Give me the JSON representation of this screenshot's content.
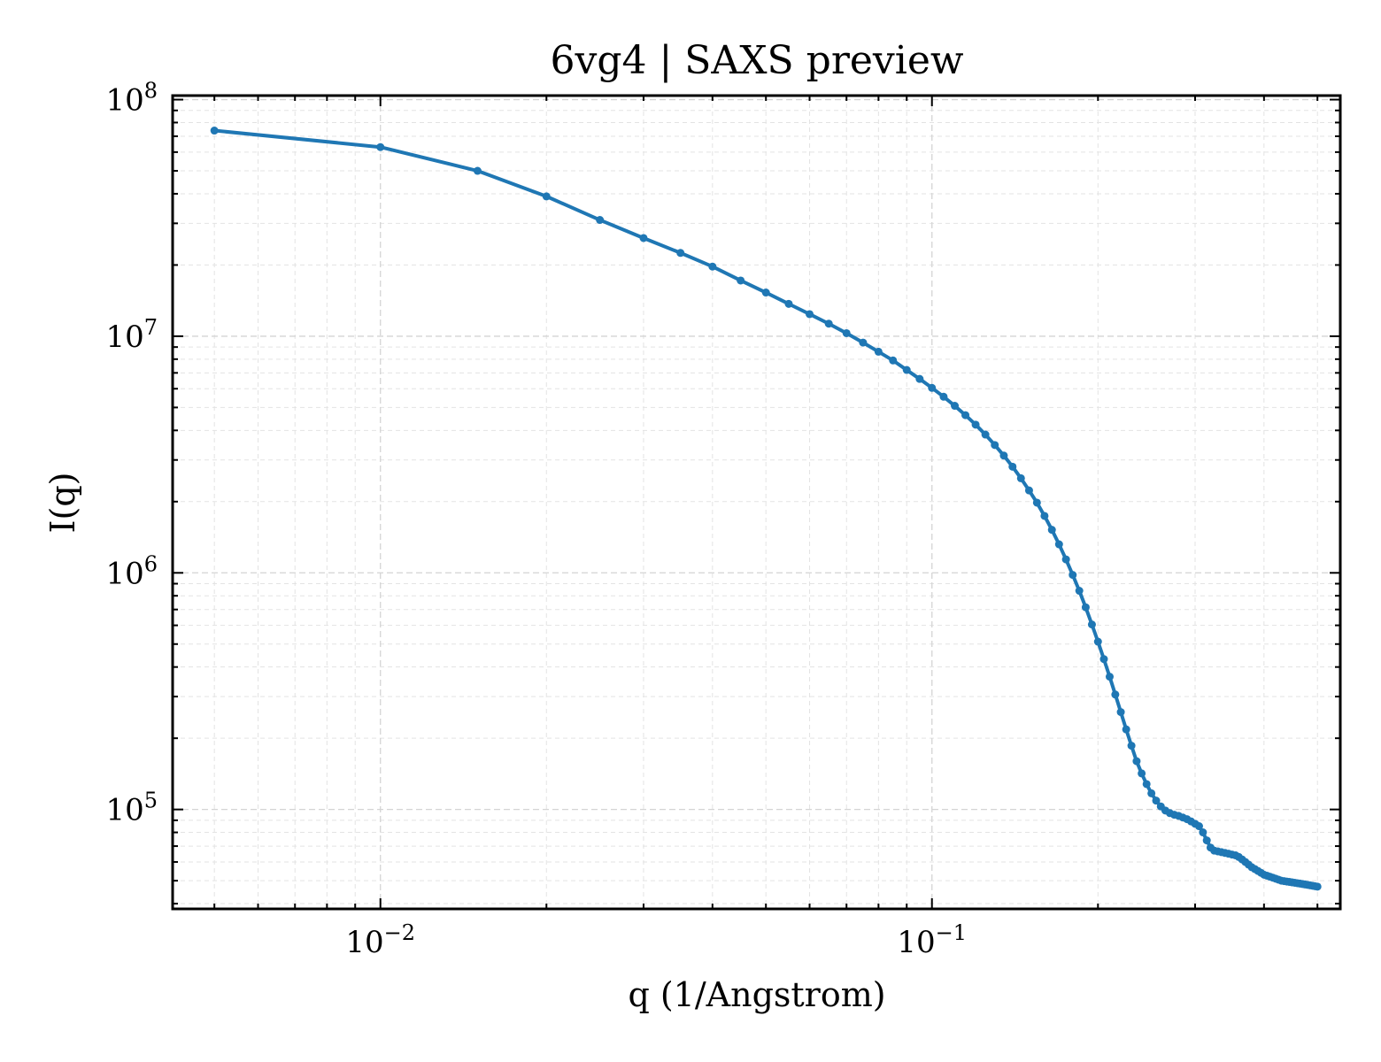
{
  "chart_data": {
    "type": "line",
    "title": "6vg4 | SAXS preview",
    "xlabel": "q (1/Angstrom)",
    "ylabel": "I(q)",
    "xscale": "log",
    "yscale": "log",
    "xlim": [
      0.0042,
      0.55
    ],
    "ylim": [
      38000,
      104000000
    ],
    "grid": "major and minor, dashed",
    "x_ticks": [
      {
        "value": 0.01,
        "base": "10",
        "exp": "−2"
      },
      {
        "value": 0.1,
        "base": "10",
        "exp": "−1"
      }
    ],
    "y_ticks": [
      {
        "value": 100000,
        "base": "10",
        "exp": "5"
      },
      {
        "value": 1000000,
        "base": "10",
        "exp": "6"
      },
      {
        "value": 10000000,
        "base": "10",
        "exp": "7"
      },
      {
        "value": 100000000,
        "base": "10",
        "exp": "8"
      }
    ],
    "series": [
      {
        "color": "#1f77b4",
        "marker": "circle",
        "x": [
          0.005,
          0.01,
          0.015,
          0.02,
          0.025,
          0.03,
          0.035,
          0.04,
          0.045,
          0.05,
          0.055,
          0.06,
          0.065,
          0.07,
          0.075,
          0.08,
          0.085,
          0.09,
          0.095,
          0.1,
          0.105,
          0.11,
          0.115,
          0.12,
          0.125,
          0.13,
          0.135,
          0.14,
          0.145,
          0.15,
          0.155,
          0.16,
          0.165,
          0.17,
          0.175,
          0.18,
          0.185,
          0.19,
          0.195,
          0.2,
          0.205,
          0.21,
          0.215,
          0.22,
          0.225,
          0.23,
          0.235,
          0.24,
          0.245,
          0.25,
          0.255,
          0.26,
          0.265,
          0.27,
          0.275,
          0.28,
          0.285,
          0.29,
          0.295,
          0.3,
          0.305,
          0.31,
          0.315,
          0.32,
          0.325,
          0.33,
          0.335,
          0.34,
          0.345,
          0.35,
          0.355,
          0.36,
          0.365,
          0.37,
          0.375,
          0.38,
          0.385,
          0.39,
          0.395,
          0.4,
          0.405,
          0.41,
          0.415,
          0.42,
          0.425,
          0.43,
          0.435,
          0.44,
          0.445,
          0.45,
          0.455,
          0.46,
          0.465,
          0.47,
          0.475,
          0.48,
          0.485,
          0.49,
          0.495,
          0.5
        ],
        "y": [
          74000000,
          63000000,
          50000000,
          39000000,
          31000000,
          26000000,
          22500000,
          19700000,
          17200000,
          15300000,
          13700000,
          12400000,
          11300000,
          10300000,
          9400000,
          8600000,
          7900000,
          7200000,
          6600000,
          6050000,
          5550000,
          5080000,
          4640000,
          4230000,
          3840000,
          3470000,
          3130000,
          2810000,
          2510000,
          2230000,
          1980000,
          1740000,
          1520000,
          1320000,
          1140000,
          980000,
          840000,
          715000,
          605000,
          512000,
          432000,
          364000,
          306000,
          258000,
          218000,
          186000,
          160000,
          142000,
          128000,
          117000,
          109000,
          103000,
          99000,
          96500,
          95000,
          94000,
          92500,
          91000,
          89000,
          87000,
          85000,
          80000,
          74000,
          69000,
          67000,
          66500,
          66000,
          65500,
          65000,
          64500,
          64000,
          63000,
          61500,
          60000,
          58500,
          57000,
          56000,
          55000,
          54000,
          53000,
          52500,
          52000,
          51500,
          51000,
          50500,
          50000,
          49800,
          49600,
          49400,
          49200,
          49000,
          48800,
          48600,
          48400,
          48200,
          48000,
          47800,
          47600,
          47400,
          47200
        ]
      }
    ]
  }
}
